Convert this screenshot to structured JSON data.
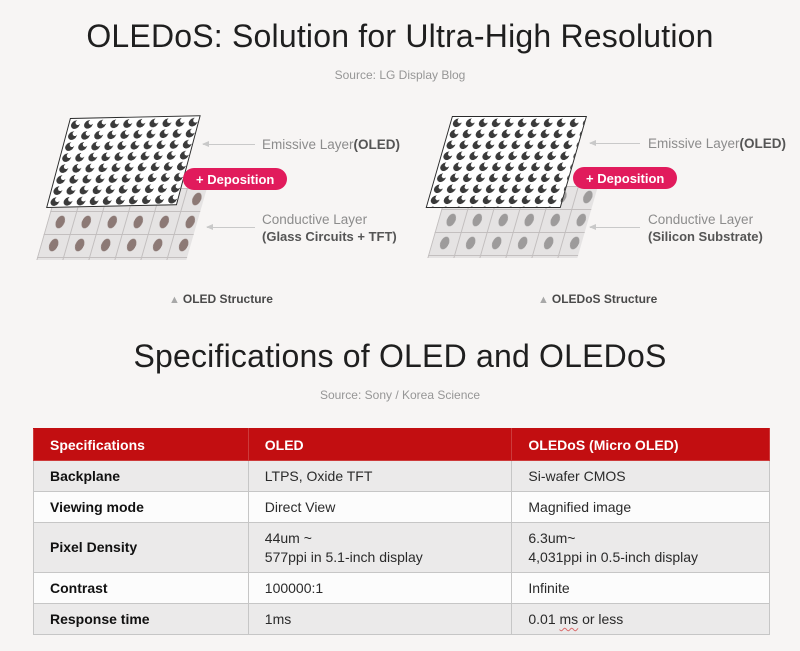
{
  "header": {
    "title": "OLEDoS: Solution for Ultra-High Resolution",
    "source": "Source: LG Display Blog"
  },
  "diagrams": [
    {
      "emissive_label": "Emissive Layer",
      "emissive_label_bold": "(OLED)",
      "deposition_badge": "+ Deposition",
      "conductive_label": "Conductive Layer",
      "conductive_sublabel": "(Glass Circuits + TFT)",
      "marker_icon": "▲",
      "caption": "OLED Structure"
    },
    {
      "emissive_label": "Emissive Layer",
      "emissive_label_bold": "(OLED)",
      "deposition_badge": "+ Deposition",
      "conductive_label": "Conductive Layer",
      "conductive_sublabel": "(Silicon Substrate)",
      "marker_icon": "▲",
      "caption": "OLEDoS Structure"
    }
  ],
  "specs": {
    "title": "Specifications of OLED and OLEDoS",
    "source": "Source: Sony / Korea Science",
    "table": {
      "headers": [
        "Specifications",
        "OLED",
        "OLEDoS (Micro OLED)"
      ],
      "rows": [
        {
          "spec": "Backplane",
          "oled": "LTPS, Oxide TFT",
          "oledos": "Si-wafer CMOS"
        },
        {
          "spec": "Viewing mode",
          "oled": "Direct View",
          "oledos": "Magnified image"
        },
        {
          "spec": "Pixel Density",
          "oled_line1": "44um ~",
          "oled_line2": "577ppi in 5.1-inch display",
          "oledos_line1": "6.3um~",
          "oledos_line2": "4,031ppi in 0.5-inch display"
        },
        {
          "spec": "Contrast",
          "oled": "100000:1",
          "oledos": "Infinite"
        },
        {
          "spec": "Response time",
          "oled": "1ms",
          "oledos_pre": "0.01 ",
          "oledos_underlined": "ms",
          "oledos_post": " or less"
        }
      ]
    }
  },
  "colors": {
    "background": "#f7f5f4",
    "accent_pink": "#e11b5c",
    "table_header_red": "#c20e11",
    "row_stripe": "#ebeaea"
  }
}
